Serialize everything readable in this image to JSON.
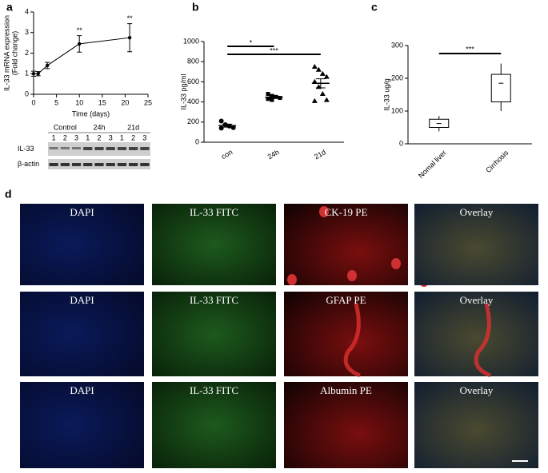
{
  "panel_labels": [
    "a",
    "b",
    "c",
    "d"
  ],
  "chart_data": [
    {
      "type": "line",
      "ylabel": [
        "IL-33 mRNA expression",
        "(Fold change)"
      ],
      "xlabel": "Time (days)",
      "x": [
        0,
        1,
        3,
        10,
        21
      ],
      "series": [
        {
          "color": "#000000",
          "values": [
            1.0,
            1.0,
            1.4,
            2.45,
            2.75
          ],
          "errors": [
            0.12,
            0.1,
            0.15,
            0.4,
            0.68
          ]
        }
      ],
      "significance": [
        null,
        null,
        null,
        "**",
        "**"
      ],
      "xlim": [
        0,
        25
      ],
      "xticks": [
        0,
        5,
        10,
        15,
        20,
        25
      ],
      "ylim": [
        0,
        4
      ],
      "yticks": [
        0,
        1,
        2,
        3,
        4
      ]
    },
    {
      "type": "dotplot",
      "ylabel": "IL-33 pg/ml",
      "categories": [
        "con",
        "24h",
        "21d"
      ],
      "markers": [
        "circle",
        "square",
        "triangle"
      ],
      "points": [
        [
          210,
          175,
          160,
          145,
          140
        ],
        [
          480,
          460,
          450,
          440,
          430,
          420
        ],
        [
          750,
          720,
          680,
          650,
          600,
          550,
          480,
          420,
          410
        ]
      ],
      "means": [
        165,
        447,
        585
      ],
      "sem": [
        15,
        10,
        45
      ],
      "comparisons": [
        {
          "groups": [
            "con",
            "24h"
          ],
          "text": "*"
        },
        {
          "groups": [
            "con",
            "21d"
          ],
          "text": "***"
        }
      ],
      "ylim": [
        0,
        1000
      ],
      "yticks": [
        0,
        200,
        400,
        600,
        800,
        1000
      ]
    },
    {
      "type": "box",
      "ylabel": "IL-33 ug/g",
      "categories": [
        "Nomal liver",
        "Cirrhosis"
      ],
      "boxes": [
        {
          "whisker_low": 38,
          "q1": 50,
          "median": 62,
          "q3": 75,
          "whisker_high": 85
        },
        {
          "whisker_low": 100,
          "q1": 128,
          "median": 185,
          "q3": 212,
          "whisker_high": 245
        }
      ],
      "comparisons": [
        {
          "groups": [
            "Nomal liver",
            "Cirrhosis"
          ],
          "text": "***"
        }
      ],
      "ylim": [
        0,
        300
      ],
      "yticks": [
        0,
        100,
        200,
        300
      ]
    }
  ],
  "blot": {
    "groups": [
      "Control",
      "24h",
      "21d"
    ],
    "lanes": [
      "1",
      "2",
      "3",
      "1",
      "2",
      "3",
      "1",
      "2",
      "3"
    ],
    "rows": [
      "IL-33",
      "β-actin"
    ]
  },
  "images": {
    "rows": [
      [
        "DAPI",
        "IL-33 FITC",
        "CK-19 PE",
        "Overlay"
      ],
      [
        "DAPI",
        "IL-33 FITC",
        "GFAP PE",
        "Overlay"
      ],
      [
        "DAPI",
        "IL-33 FITC",
        "Albumin PE",
        "Overlay"
      ]
    ]
  }
}
